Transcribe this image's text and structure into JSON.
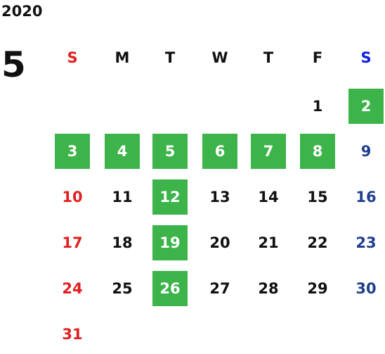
{
  "year": "2020",
  "month": "5",
  "weekdays": [
    "S",
    "M",
    "T",
    "W",
    "T",
    "F",
    "S"
  ],
  "weeks": [
    [
      null,
      null,
      null,
      null,
      null,
      {
        "day": "1",
        "highlight": false
      },
      {
        "day": "2",
        "highlight": true
      }
    ],
    [
      {
        "day": "3",
        "highlight": true
      },
      {
        "day": "4",
        "highlight": true
      },
      {
        "day": "5",
        "highlight": true
      },
      {
        "day": "6",
        "highlight": true
      },
      {
        "day": "7",
        "highlight": true
      },
      {
        "day": "8",
        "highlight": true
      },
      {
        "day": "9",
        "highlight": false
      }
    ],
    [
      {
        "day": "10",
        "highlight": false
      },
      {
        "day": "11",
        "highlight": false
      },
      {
        "day": "12",
        "highlight": true
      },
      {
        "day": "13",
        "highlight": false
      },
      {
        "day": "14",
        "highlight": false
      },
      {
        "day": "15",
        "highlight": false
      },
      {
        "day": "16",
        "highlight": false
      }
    ],
    [
      {
        "day": "17",
        "highlight": false
      },
      {
        "day": "18",
        "highlight": false
      },
      {
        "day": "19",
        "highlight": true
      },
      {
        "day": "20",
        "highlight": false
      },
      {
        "day": "21",
        "highlight": false
      },
      {
        "day": "22",
        "highlight": false
      },
      {
        "day": "23",
        "highlight": false
      }
    ],
    [
      {
        "day": "24",
        "highlight": false
      },
      {
        "day": "25",
        "highlight": false
      },
      {
        "day": "26",
        "highlight": true
      },
      {
        "day": "27",
        "highlight": false
      },
      {
        "day": "28",
        "highlight": false
      },
      {
        "day": "29",
        "highlight": false
      },
      {
        "day": "30",
        "highlight": false
      }
    ],
    [
      {
        "day": "31",
        "highlight": false
      },
      null,
      null,
      null,
      null,
      null,
      null
    ]
  ]
}
